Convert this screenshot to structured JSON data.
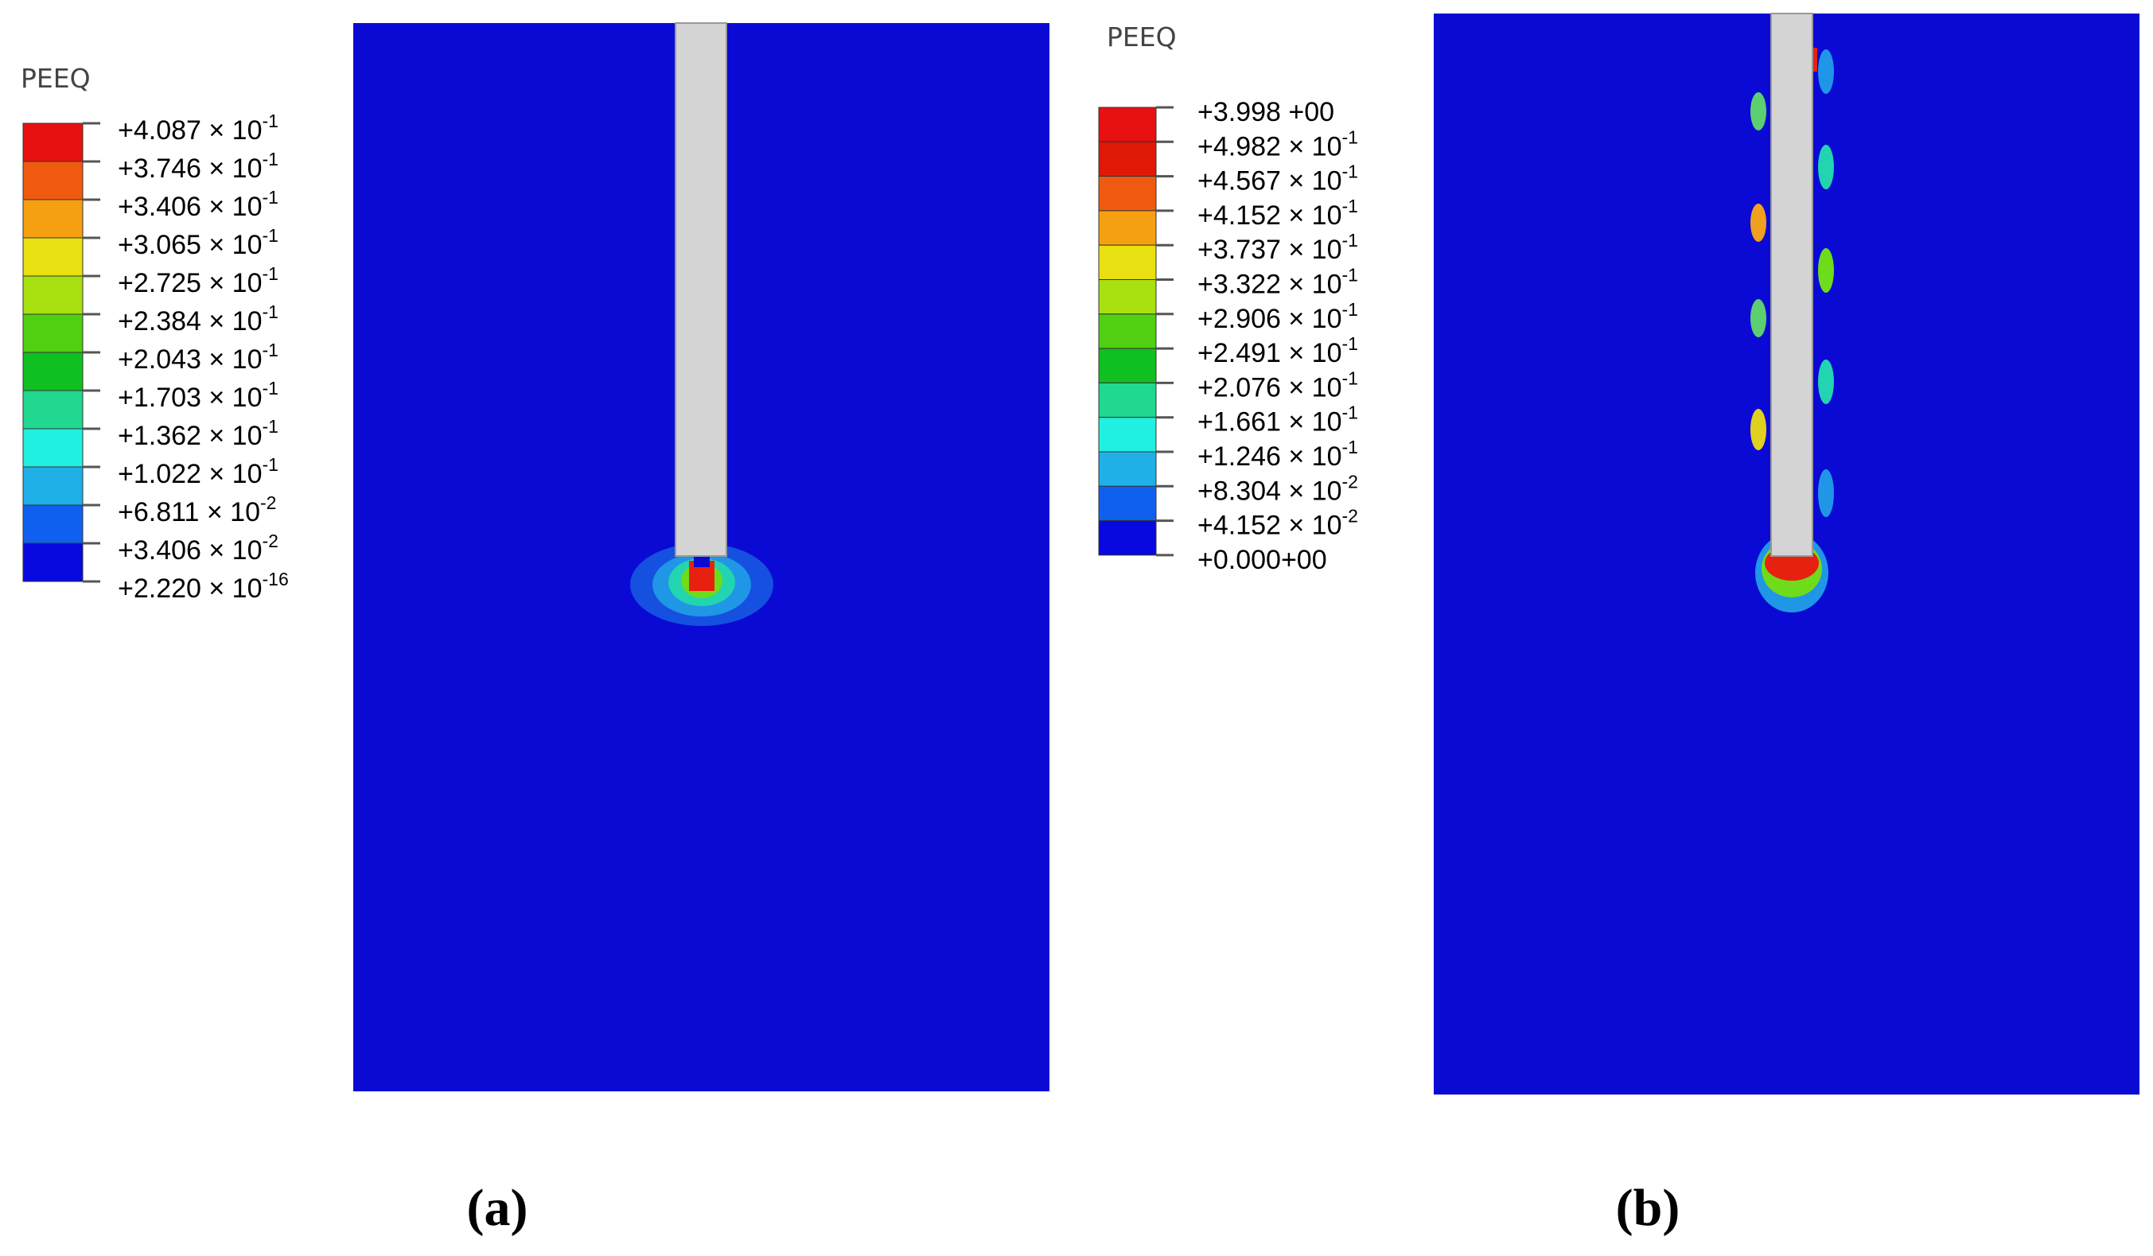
{
  "panels": [
    {
      "legend_title": "PEEQ",
      "legend_labels": [
        {
          "mantissa": "+4.087 × 10",
          "exponent": "-1"
        },
        {
          "mantissa": "+3.746 × 10",
          "exponent": "-1"
        },
        {
          "mantissa": "+3.406 × 10",
          "exponent": "-1"
        },
        {
          "mantissa": "+3.065 × 10",
          "exponent": "-1"
        },
        {
          "mantissa": "+2.725 × 10",
          "exponent": "-1"
        },
        {
          "mantissa": "+2.384 × 10",
          "exponent": "-1"
        },
        {
          "mantissa": "+2.043 × 10",
          "exponent": "-1"
        },
        {
          "mantissa": "+1.703 × 10",
          "exponent": "-1"
        },
        {
          "mantissa": "+1.362 × 10",
          "exponent": "-1"
        },
        {
          "mantissa": "+1.022 × 10",
          "exponent": "-1"
        },
        {
          "mantissa": "+6.811 × 10",
          "exponent": "-2"
        },
        {
          "mantissa": "+3.406 × 10",
          "exponent": "-2"
        },
        {
          "mantissa": "+2.220 × 10",
          "exponent": "-16"
        }
      ],
      "panel_label": "(a)"
    },
    {
      "legend_title": "PEEQ",
      "legend_labels": [
        {
          "mantissa": "+3.998 +00"
        },
        {
          "mantissa": "+4.982 × 10",
          "exponent": "-1"
        },
        {
          "mantissa": "+4.567 × 10",
          "exponent": "-1"
        },
        {
          "mantissa": "+4.152 × 10",
          "exponent": "-1"
        },
        {
          "mantissa": "+3.737 × 10",
          "exponent": "-1"
        },
        {
          "mantissa": "+3.322 × 10",
          "exponent": "-1"
        },
        {
          "mantissa": "+2.906 × 10",
          "exponent": "-1"
        },
        {
          "mantissa": "+2.491 × 10",
          "exponent": "-1"
        },
        {
          "mantissa": "+2.076 × 10",
          "exponent": "-1"
        },
        {
          "mantissa": "+1.661 × 10",
          "exponent": "-1"
        },
        {
          "mantissa": "+1.246 × 10",
          "exponent": "-1"
        },
        {
          "mantissa": "+8.304 × 10",
          "exponent": "-2"
        },
        {
          "mantissa": "+4.152 × 10",
          "exponent": "-2"
        },
        {
          "mantissa": "+0.000+00"
        }
      ],
      "panel_label": "(b)"
    }
  ]
}
